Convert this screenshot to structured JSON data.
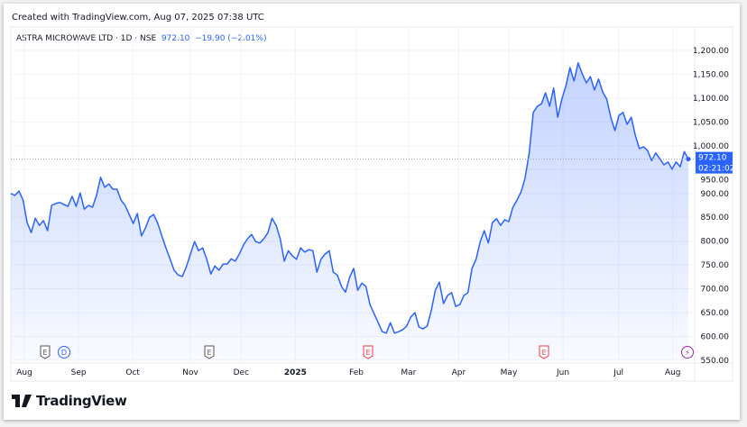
{
  "header": {
    "created": "Created with TradingView.com, Aug 07, 2025 07:38 UTC"
  },
  "legend": {
    "symbol": "ASTRA MICROWAVE LTD · 1D · NSE",
    "price": "972.10",
    "change": "−19.90 (−2.01%)"
  },
  "price_badge": {
    "price": "972.10",
    "countdown": "02:21:02"
  },
  "brand": {
    "name": "TradingView"
  },
  "colors": {
    "line": "#2962ff",
    "fill": "#2962ff"
  },
  "events": [
    {
      "label": "E",
      "kind": "earnings-past",
      "pos": 0.05
    },
    {
      "label": "D",
      "kind": "dividend",
      "pos": 0.077
    },
    {
      "label": "E",
      "kind": "earnings-past",
      "pos": 0.29
    },
    {
      "label": "E",
      "kind": "earnings-miss",
      "pos": 0.525
    },
    {
      "label": "E",
      "kind": "earnings-miss",
      "pos": 0.785
    },
    {
      "label": "⚡",
      "kind": "split",
      "pos": 1.0
    }
  ],
  "chart_data": {
    "type": "area",
    "title": "ASTRA MICROWAVE LTD · 1D · NSE",
    "ylim": [
      540,
      1220
    ],
    "yticks": [
      "1,200.00",
      "1,150.00",
      "1,100.00",
      "1,050.00",
      "1,000.00",
      "950.00",
      "900.00",
      "850.00",
      "800.00",
      "750.00",
      "700.00",
      "650.00",
      "600.00",
      "550.00"
    ],
    "ytick_values": [
      1200,
      1150,
      1100,
      1050,
      1000,
      950,
      900,
      850,
      800,
      750,
      700,
      650,
      600,
      550
    ],
    "xticks": [
      "Aug",
      "Sep",
      "Oct",
      "Nov",
      "Dec",
      "2025",
      "Feb",
      "Mar",
      "Apr",
      "May",
      "Jun",
      "Jul",
      "Aug"
    ],
    "xtick_pos": [
      0.02,
      0.1,
      0.18,
      0.265,
      0.34,
      0.42,
      0.51,
      0.587,
      0.661,
      0.735,
      0.815,
      0.897,
      0.977
    ],
    "last_value": 972.1,
    "values": [
      900,
      896,
      905,
      886,
      839,
      818,
      848,
      833,
      843,
      822,
      875,
      879,
      881,
      877,
      873,
      894,
      873,
      901,
      867,
      875,
      871,
      896,
      934,
      913,
      920,
      909,
      909,
      886,
      875,
      856,
      837,
      858,
      811,
      828,
      850,
      856,
      837,
      811,
      786,
      763,
      739,
      729,
      726,
      746,
      773,
      799,
      780,
      786,
      762,
      731,
      748,
      739,
      752,
      752,
      763,
      758,
      773,
      792,
      805,
      814,
      799,
      796,
      805,
      818,
      848,
      833,
      805,
      758,
      780,
      769,
      762,
      786,
      777,
      782,
      780,
      735,
      762,
      773,
      780,
      735,
      729,
      705,
      693,
      724,
      743,
      697,
      712,
      705,
      667,
      648,
      629,
      610,
      607,
      629,
      607,
      610,
      614,
      622,
      641,
      650,
      620,
      616,
      622,
      654,
      697,
      714,
      669,
      686,
      692,
      663,
      667,
      686,
      692,
      743,
      762,
      799,
      822,
      796,
      839,
      847,
      833,
      845,
      841,
      871,
      886,
      903,
      932,
      985,
      1070,
      1083,
      1088,
      1111,
      1083,
      1121,
      1060,
      1098,
      1126,
      1164,
      1136,
      1174,
      1151,
      1132,
      1145,
      1117,
      1140,
      1113,
      1098,
      1060,
      1032,
      1064,
      1070,
      1045,
      1060,
      1022,
      994,
      998,
      990,
      969,
      985,
      973,
      960,
      966,
      951,
      966,
      956,
      988,
      972
    ]
  }
}
